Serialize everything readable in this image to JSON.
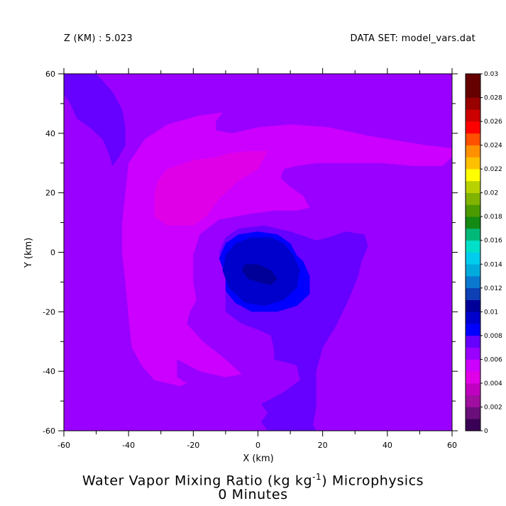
{
  "header": {
    "z_label": "Z (KM) : 5.023",
    "dataset_label": "DATA SET: model_vars.dat"
  },
  "title": {
    "part1": "Water Vapor Mixing Ratio (kg kg",
    "exponent": "-1",
    "part2": ") Microphysics",
    "subtitle": "0 Minutes"
  },
  "colors": {
    "background_level": "#9900ff",
    "levels": [
      "#3a0055",
      "#6a0f7a",
      "#a00fa0",
      "#c000c0",
      "#e000e8",
      "#cc00ff",
      "#9900ff",
      "#6600ff",
      "#0000ff",
      "#0000cc",
      "#000099",
      "#0d3fb5",
      "#0a78cf",
      "#00aadd",
      "#00ccee",
      "#00e0c8",
      "#00b878",
      "#148a14",
      "#4a9a00",
      "#80b400",
      "#b8d200",
      "#ffff00",
      "#ffc000",
      "#ff9000",
      "#ff5000",
      "#ff0000",
      "#cc0000",
      "#990000",
      "#660000"
    ]
  },
  "chart_data": {
    "type": "contourf",
    "xlabel": "X (km)",
    "ylabel": "Y (km)",
    "xlim": [
      -60,
      60
    ],
    "ylim": [
      -60,
      60
    ],
    "xticks": [
      -60,
      -40,
      -20,
      0,
      20,
      40,
      60
    ],
    "yticks": [
      -60,
      -40,
      -20,
      0,
      20,
      40,
      60
    ],
    "colorbar": {
      "min": 0,
      "max": 0.03,
      "step": 0.001,
      "tick_labels": [
        "0",
        "0.002",
        "0.004",
        "0.006",
        "0.008",
        "0.01",
        "0.012",
        "0.014",
        "0.016",
        "0.018",
        "0.02",
        "0.022",
        "0.024",
        "0.026",
        "0.028",
        "0.03"
      ]
    },
    "background_value": 0.0065,
    "regions": [
      {
        "level": 0.0075,
        "points": [
          [
            -60,
            60
          ],
          [
            -50,
            60
          ],
          [
            -45,
            54
          ],
          [
            -42,
            48
          ],
          [
            -41,
            42
          ],
          [
            -41,
            36
          ],
          [
            -43,
            32
          ],
          [
            -45,
            29
          ],
          [
            -46,
            33
          ],
          [
            -48,
            38
          ],
          [
            -52,
            42
          ],
          [
            -56,
            45
          ],
          [
            -58,
            50
          ],
          [
            -60,
            53
          ]
        ]
      },
      {
        "level": 0.0055,
        "points": [
          [
            -40,
            30
          ],
          [
            -35,
            38
          ],
          [
            -28,
            43
          ],
          [
            -18,
            46
          ],
          [
            -11,
            47
          ],
          [
            -13,
            44
          ],
          [
            -13,
            41
          ],
          [
            -8,
            40
          ],
          [
            0,
            42
          ],
          [
            10,
            43
          ],
          [
            22,
            42
          ],
          [
            35,
            39
          ],
          [
            52,
            36
          ],
          [
            60,
            35
          ],
          [
            60,
            32
          ],
          [
            57,
            29
          ],
          [
            48,
            29
          ],
          [
            38,
            30
          ],
          [
            28,
            30
          ],
          [
            18,
            30
          ],
          [
            12,
            29
          ],
          [
            8,
            28
          ],
          [
            7,
            25
          ],
          [
            10,
            22
          ],
          [
            14,
            19
          ],
          [
            16,
            15
          ],
          [
            12,
            14
          ],
          [
            5,
            14
          ],
          [
            -2,
            13
          ],
          [
            -12,
            11
          ],
          [
            -18,
            6
          ],
          [
            -20,
            -1
          ],
          [
            -20,
            -10
          ],
          [
            -19,
            -16
          ],
          [
            -21,
            -20
          ],
          [
            -22,
            -24
          ],
          [
            -17,
            -30
          ],
          [
            -10,
            -36
          ],
          [
            -5,
            -41
          ],
          [
            -10,
            -42
          ],
          [
            -18,
            -40
          ],
          [
            -25,
            -36
          ],
          [
            -25,
            -42
          ],
          [
            -22,
            -44
          ],
          [
            -24,
            -45
          ],
          [
            -32,
            -43
          ],
          [
            -36,
            -38
          ],
          [
            -39,
            -32
          ],
          [
            -40,
            -22
          ],
          [
            -41,
            -10
          ],
          [
            -42,
            0
          ],
          [
            -42,
            10
          ],
          [
            -41,
            20
          ]
        ]
      },
      {
        "level": 0.0045,
        "points": [
          [
            -32,
            20
          ],
          [
            -31,
            24
          ],
          [
            -28,
            28
          ],
          [
            -20,
            31
          ],
          [
            -13,
            32
          ],
          [
            -10,
            33
          ],
          [
            -4,
            34
          ],
          [
            3,
            34
          ],
          [
            0,
            28
          ],
          [
            -6,
            24
          ],
          [
            -12,
            18
          ],
          [
            -16,
            12
          ],
          [
            -20,
            9
          ],
          [
            -28,
            9
          ],
          [
            -32,
            12
          ]
        ]
      },
      {
        "level": 0.0075,
        "points": [
          [
            -10,
            -20
          ],
          [
            -10,
            -8
          ],
          [
            -12,
            0
          ],
          [
            -10,
            5
          ],
          [
            -6,
            8
          ],
          [
            2,
            9
          ],
          [
            10,
            7
          ],
          [
            18,
            4
          ],
          [
            22,
            5
          ],
          [
            27,
            7
          ],
          [
            33,
            6
          ],
          [
            34,
            2
          ],
          [
            32,
            -3
          ],
          [
            31,
            -8
          ],
          [
            28,
            -16
          ],
          [
            24,
            -25
          ],
          [
            20,
            -32
          ],
          [
            18,
            -40
          ],
          [
            18,
            -52
          ],
          [
            17,
            -58
          ],
          [
            18,
            -60
          ],
          [
            3,
            -60
          ],
          [
            1,
            -57
          ],
          [
            3,
            -54
          ],
          [
            1,
            -51
          ],
          [
            8,
            -47
          ],
          [
            13,
            -43
          ],
          [
            12,
            -38
          ],
          [
            5,
            -36
          ],
          [
            5,
            -33
          ],
          [
            4,
            -28
          ],
          [
            0,
            -26
          ],
          [
            -5,
            -24
          ]
        ]
      },
      {
        "level": 0.0085,
        "points": [
          [
            -10,
            -8
          ],
          [
            -12,
            -2
          ],
          [
            -10,
            3
          ],
          [
            -6,
            6
          ],
          [
            0,
            7
          ],
          [
            6,
            6
          ],
          [
            10,
            3
          ],
          [
            12,
            -1
          ],
          [
            14,
            -3
          ],
          [
            16,
            -8
          ],
          [
            16,
            -14
          ],
          [
            12,
            -18
          ],
          [
            6,
            -20
          ],
          [
            -2,
            -20
          ],
          [
            -7,
            -17
          ],
          [
            -10,
            -13
          ]
        ]
      },
      {
        "level": 0.0095,
        "points": [
          [
            -11,
            -6
          ],
          [
            -10,
            -1
          ],
          [
            -7,
            3
          ],
          [
            -2,
            5
          ],
          [
            4,
            5
          ],
          [
            8,
            3
          ],
          [
            11,
            -1
          ],
          [
            13,
            -6
          ],
          [
            12,
            -12
          ],
          [
            8,
            -16
          ],
          [
            2,
            -18
          ],
          [
            -4,
            -17
          ],
          [
            -9,
            -12
          ]
        ]
      },
      {
        "level": 0.0105,
        "points": [
          [
            -5,
            -6
          ],
          [
            -4,
            -4
          ],
          [
            0,
            -4
          ],
          [
            4,
            -6
          ],
          [
            6,
            -9
          ],
          [
            4,
            -11
          ],
          [
            0,
            -10
          ],
          [
            -3,
            -9
          ]
        ]
      }
    ]
  }
}
